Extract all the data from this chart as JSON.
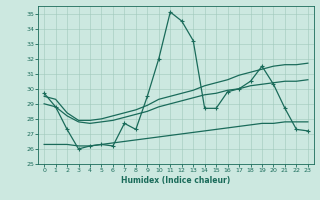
{
  "xlabel": "Humidex (Indice chaleur)",
  "xlim": [
    -0.5,
    23.5
  ],
  "ylim": [
    25,
    35.5
  ],
  "yticks": [
    25,
    26,
    27,
    28,
    29,
    30,
    31,
    32,
    33,
    34,
    35
  ],
  "xticks": [
    0,
    1,
    2,
    3,
    4,
    5,
    6,
    7,
    8,
    9,
    10,
    11,
    12,
    13,
    14,
    15,
    16,
    17,
    18,
    19,
    20,
    21,
    22,
    23
  ],
  "bg_color": "#cce8e0",
  "line_color": "#1a6b5a",
  "grid_color": "#a0c8bc",
  "s1_x": [
    0,
    1,
    2,
    3,
    4,
    5,
    6,
    7,
    8,
    9,
    10,
    11,
    12,
    13,
    14,
    15,
    16,
    17,
    18,
    19,
    20,
    21,
    22,
    23
  ],
  "s1_y": [
    29.7,
    28.8,
    27.3,
    26.0,
    26.2,
    26.3,
    26.2,
    27.7,
    27.3,
    29.5,
    32.0,
    35.1,
    34.5,
    33.2,
    28.7,
    28.7,
    29.8,
    30.0,
    30.5,
    31.5,
    30.3,
    28.7,
    27.3,
    27.2
  ],
  "s2_x": [
    0,
    1,
    2,
    3,
    4,
    5,
    6,
    7,
    8,
    9,
    10,
    11,
    12,
    13,
    14,
    15,
    16,
    17,
    18,
    19,
    20,
    21,
    22,
    23
  ],
  "s2_y": [
    29.5,
    29.3,
    28.4,
    27.9,
    27.9,
    28.0,
    28.2,
    28.4,
    28.6,
    28.9,
    29.3,
    29.5,
    29.7,
    29.9,
    30.2,
    30.4,
    30.6,
    30.9,
    31.1,
    31.3,
    31.5,
    31.6,
    31.6,
    31.7
  ],
  "s3_x": [
    0,
    1,
    2,
    3,
    4,
    5,
    6,
    7,
    8,
    9,
    10,
    11,
    12,
    13,
    14,
    15,
    16,
    17,
    18,
    19,
    20,
    21,
    22,
    23
  ],
  "s3_y": [
    29.0,
    28.8,
    28.2,
    27.8,
    27.7,
    27.8,
    27.9,
    28.1,
    28.3,
    28.5,
    28.8,
    29.0,
    29.2,
    29.4,
    29.6,
    29.7,
    29.9,
    30.0,
    30.2,
    30.3,
    30.4,
    30.5,
    30.5,
    30.6
  ],
  "s4_x": [
    0,
    1,
    2,
    3,
    4,
    5,
    6,
    7,
    8,
    9,
    10,
    11,
    12,
    13,
    14,
    15,
    16,
    17,
    18,
    19,
    20,
    21,
    22,
    23
  ],
  "s4_y": [
    26.3,
    26.3,
    26.3,
    26.2,
    26.2,
    26.3,
    26.4,
    26.5,
    26.6,
    26.7,
    26.8,
    26.9,
    27.0,
    27.1,
    27.2,
    27.3,
    27.4,
    27.5,
    27.6,
    27.7,
    27.7,
    27.8,
    27.8,
    27.8
  ]
}
